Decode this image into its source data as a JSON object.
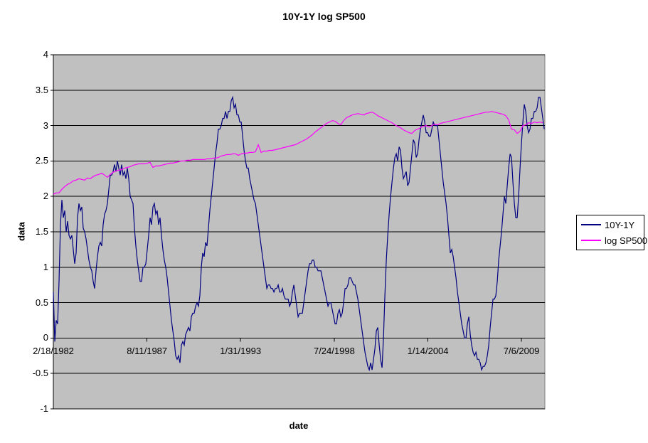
{
  "chart_data": {
    "type": "line",
    "title": "10Y-1Y log SP500",
    "xlabel": "date",
    "ylabel": "data",
    "x_unit": "decimal_year",
    "xlim": [
      1982.13,
      2010.88
    ],
    "ylim": [
      -1,
      4
    ],
    "grid": "horizontal-major",
    "plot_bg": "#c0c0c0",
    "gridline_color": "#000000",
    "legend_position": "right",
    "y_ticks": [
      {
        "value": 4,
        "label": "4"
      },
      {
        "value": 3.5,
        "label": "3.5"
      },
      {
        "value": 3,
        "label": "3"
      },
      {
        "value": 2.5,
        "label": "2.5"
      },
      {
        "value": 2,
        "label": "2"
      },
      {
        "value": 1.5,
        "label": "1.5"
      },
      {
        "value": 1,
        "label": "1"
      },
      {
        "value": 0.5,
        "label": "0.5"
      },
      {
        "value": 0,
        "label": "0"
      },
      {
        "value": -0.5,
        "label": "-0.5"
      },
      {
        "value": -1,
        "label": "-1"
      }
    ],
    "x_ticks": [
      {
        "year": 1982.13,
        "label": "2/18/1982"
      },
      {
        "year": 1987.61,
        "label": "8/11/1987"
      },
      {
        "year": 1993.08,
        "label": "1/31/1993"
      },
      {
        "year": 1998.56,
        "label": "7/24/1998"
      },
      {
        "year": 2004.04,
        "label": "1/14/2004"
      },
      {
        "year": 2009.51,
        "label": "7/6/2009"
      }
    ],
    "series": [
      {
        "name": "10Y-1Y",
        "color": "#000080",
        "start_year": 1982.13,
        "step_years": 0.08323,
        "values": [
          0.65,
          -0.05,
          0.25,
          0.2,
          0.8,
          1.6,
          1.95,
          1.7,
          1.8,
          1.5,
          1.65,
          1.45,
          1.4,
          1.45,
          1.25,
          1.05,
          1.2,
          1.7,
          1.9,
          1.8,
          1.85,
          1.55,
          1.5,
          1.4,
          1.25,
          1.1,
          1.0,
          0.95,
          0.8,
          0.7,
          0.95,
          1.15,
          1.3,
          1.35,
          1.3,
          1.6,
          1.75,
          1.8,
          1.9,
          2.1,
          2.3,
          2.3,
          2.35,
          2.45,
          2.35,
          2.5,
          2.4,
          2.3,
          2.45,
          2.3,
          2.35,
          2.25,
          2.4,
          2.25,
          2.0,
          1.95,
          1.9,
          1.55,
          1.3,
          1.1,
          0.95,
          0.8,
          0.8,
          1.0,
          1.0,
          1.05,
          1.25,
          1.45,
          1.7,
          1.6,
          1.85,
          1.9,
          1.75,
          1.8,
          1.6,
          1.7,
          1.45,
          1.25,
          1.1,
          1.0,
          0.85,
          0.65,
          0.45,
          0.25,
          0.1,
          -0.05,
          -0.25,
          -0.3,
          -0.25,
          -0.35,
          -0.1,
          -0.05,
          -0.1,
          0.05,
          0.1,
          0.15,
          0.1,
          0.3,
          0.35,
          0.35,
          0.45,
          0.5,
          0.45,
          0.6,
          1.0,
          1.2,
          1.15,
          1.35,
          1.3,
          1.55,
          1.8,
          2.0,
          2.2,
          2.4,
          2.6,
          2.75,
          2.95,
          2.95,
          3.0,
          3.1,
          3.1,
          3.2,
          3.1,
          3.2,
          3.2,
          3.35,
          3.4,
          3.25,
          3.3,
          3.15,
          3.15,
          3.05,
          3.05,
          2.85,
          2.65,
          2.5,
          2.4,
          2.4,
          2.25,
          2.15,
          2.05,
          1.95,
          1.9,
          1.75,
          1.6,
          1.45,
          1.3,
          1.15,
          1.0,
          0.85,
          0.7,
          0.75,
          0.75,
          0.7,
          0.7,
          0.65,
          0.7,
          0.7,
          0.75,
          0.65,
          0.65,
          0.7,
          0.6,
          0.55,
          0.55,
          0.55,
          0.45,
          0.5,
          0.65,
          0.75,
          0.6,
          0.45,
          0.3,
          0.35,
          0.35,
          0.35,
          0.5,
          0.65,
          0.8,
          0.95,
          1.05,
          1.05,
          1.1,
          1.1,
          1.0,
          1.0,
          0.95,
          0.95,
          0.95,
          0.85,
          0.75,
          0.65,
          0.55,
          0.45,
          0.5,
          0.5,
          0.4,
          0.3,
          0.2,
          0.2,
          0.35,
          0.4,
          0.3,
          0.35,
          0.5,
          0.7,
          0.7,
          0.75,
          0.85,
          0.85,
          0.8,
          0.75,
          0.75,
          0.65,
          0.55,
          0.4,
          0.25,
          0.1,
          -0.05,
          -0.2,
          -0.3,
          -0.4,
          -0.45,
          -0.35,
          -0.45,
          -0.3,
          -0.15,
          0.1,
          0.15,
          -0.1,
          -0.3,
          -0.42,
          0.0,
          0.6,
          1.1,
          1.45,
          1.75,
          2.0,
          2.2,
          2.4,
          2.55,
          2.6,
          2.5,
          2.7,
          2.65,
          2.4,
          2.25,
          2.3,
          2.35,
          2.15,
          2.2,
          2.4,
          2.6,
          2.8,
          2.75,
          2.55,
          2.6,
          2.8,
          2.95,
          3.05,
          3.15,
          3.05,
          2.9,
          2.9,
          2.85,
          2.85,
          2.95,
          3.05,
          3.0,
          3.0,
          3.0,
          2.8,
          2.6,
          2.4,
          2.2,
          2.05,
          1.9,
          1.7,
          1.45,
          1.2,
          1.25,
          1.15,
          1.0,
          0.85,
          0.65,
          0.5,
          0.35,
          0.2,
          0.1,
          0.0,
          0.0,
          0.2,
          0.3,
          0.05,
          -0.1,
          -0.2,
          -0.25,
          -0.2,
          -0.3,
          -0.3,
          -0.35,
          -0.45,
          -0.4,
          -0.4,
          -0.35,
          -0.25,
          -0.1,
          0.15,
          0.35,
          0.55,
          0.55,
          0.6,
          0.8,
          1.1,
          1.3,
          1.5,
          1.75,
          2.0,
          1.9,
          2.15,
          2.4,
          2.6,
          2.55,
          2.2,
          1.9,
          1.7,
          1.7,
          2.0,
          2.4,
          2.75,
          3.05,
          3.3,
          3.2,
          3.0,
          2.9,
          2.95,
          3.1,
          3.1,
          3.2,
          3.2,
          3.25,
          3.4,
          3.4,
          3.25,
          3.1,
          2.95
        ]
      },
      {
        "name": "log SP500",
        "color": "#ff00ff",
        "start_year": 1982.13,
        "step_years": 0.16646,
        "values": [
          2.03,
          2.05,
          2.05,
          2.1,
          2.14,
          2.17,
          2.19,
          2.22,
          2.23,
          2.25,
          2.24,
          2.23,
          2.26,
          2.25,
          2.28,
          2.3,
          2.31,
          2.33,
          2.3,
          2.27,
          2.31,
          2.34,
          2.36,
          2.37,
          2.38,
          2.4,
          2.41,
          2.42,
          2.44,
          2.45,
          2.46,
          2.46,
          2.46,
          2.47,
          2.48,
          2.41,
          2.43,
          2.43,
          2.44,
          2.45,
          2.46,
          2.47,
          2.47,
          2.48,
          2.49,
          2.5,
          2.5,
          2.51,
          2.51,
          2.52,
          2.52,
          2.52,
          2.52,
          2.52,
          2.53,
          2.53,
          2.54,
          2.54,
          2.55,
          2.57,
          2.58,
          2.59,
          2.59,
          2.6,
          2.6,
          2.58,
          2.6,
          2.61,
          2.61,
          2.62,
          2.62,
          2.63,
          2.73,
          2.62,
          2.64,
          2.64,
          2.65,
          2.65,
          2.66,
          2.67,
          2.68,
          2.69,
          2.7,
          2.71,
          2.72,
          2.73,
          2.75,
          2.77,
          2.79,
          2.81,
          2.84,
          2.87,
          2.91,
          2.94,
          2.97,
          3.0,
          3.03,
          3.05,
          3.07,
          3.06,
          3.03,
          3.01,
          3.07,
          3.11,
          3.13,
          3.15,
          3.16,
          3.17,
          3.16,
          3.15,
          3.17,
          3.18,
          3.19,
          3.17,
          3.14,
          3.12,
          3.1,
          3.08,
          3.06,
          3.04,
          3.01,
          2.99,
          2.97,
          2.94,
          2.92,
          2.9,
          2.89,
          2.93,
          2.95,
          2.97,
          2.99,
          3.0,
          2.98,
          3.0,
          3.02,
          3.01,
          3.03,
          3.04,
          3.05,
          3.06,
          3.07,
          3.08,
          3.09,
          3.1,
          3.11,
          3.12,
          3.13,
          3.14,
          3.15,
          3.16,
          3.17,
          3.18,
          3.19,
          3.19,
          3.2,
          3.19,
          3.18,
          3.17,
          3.16,
          3.14,
          3.08,
          2.95,
          2.94,
          2.89,
          2.92,
          3.0,
          3.01,
          3.04,
          3.03,
          3.05,
          3.04,
          3.05,
          3.04
        ]
      }
    ]
  }
}
